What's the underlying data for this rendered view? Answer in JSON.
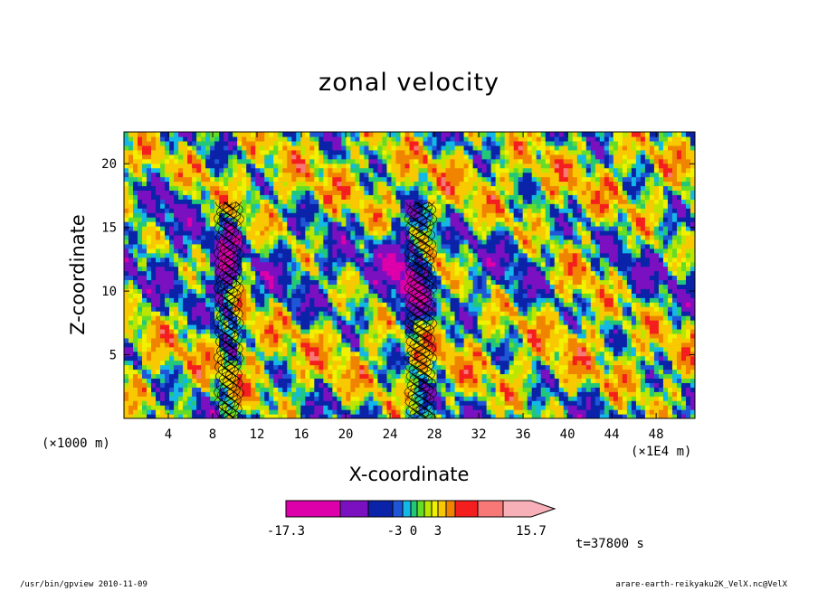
{
  "chart_data": {
    "type": "heatmap",
    "title": "zonal velocity",
    "xlabel": "X-coordinate",
    "ylabel": "Z-coordinate",
    "x_unit": "(×1000 m)",
    "x_unit_secondary": "(×1E4 m)",
    "xlim": [
      0,
      51.5
    ],
    "ylim": [
      0,
      22.5
    ],
    "x_ticks": [
      4,
      8,
      12,
      16,
      20,
      24,
      28,
      32,
      36,
      40,
      44,
      48
    ],
    "y_ticks": [
      5,
      10,
      15,
      20
    ],
    "colorbar": {
      "min_label": "-17.3",
      "max_label": "15.7",
      "mid_labels": [
        "-3",
        "0",
        "3"
      ],
      "levels": [
        -17.3,
        -12,
        -6,
        -3,
        -2,
        -1,
        0,
        1,
        2,
        3,
        6,
        9,
        12,
        15.7
      ],
      "colors": [
        "#dd00aa",
        "#7b10c0",
        "#0a23a8",
        "#1f56d8",
        "#14b8e6",
        "#22c878",
        "#64dc28",
        "#bce600",
        "#f0f000",
        "#f8c800",
        "#f08400",
        "#f41e1e",
        "#f87878",
        "#f8b0b8"
      ]
    },
    "time_label": "t=37800 s"
  },
  "footer": {
    "left": "/usr/bin/gpview   2010-11-09",
    "right": "arare-earth-reikyaku2K_VelX.nc@VelX"
  }
}
